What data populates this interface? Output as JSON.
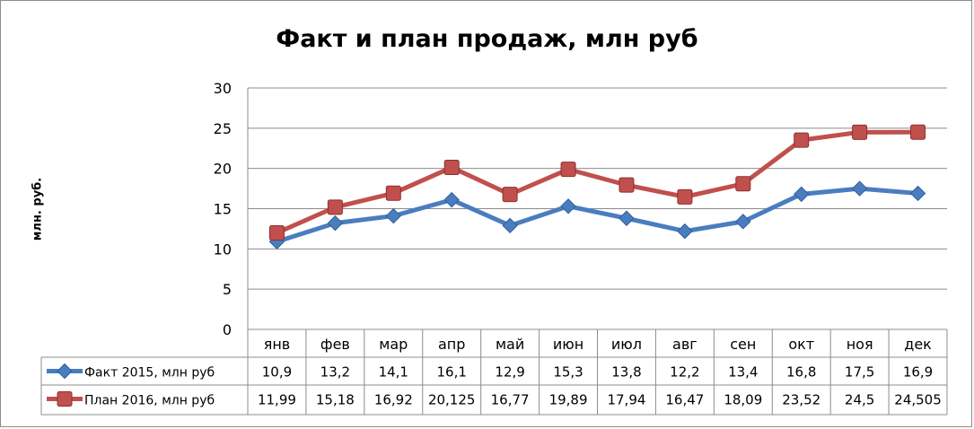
{
  "chart_data": {
    "type": "line",
    "title": "Факт и план продаж, млн руб",
    "ylabel": "млн. руб.",
    "xlabel": "",
    "ylim": [
      0,
      30
    ],
    "yticks": [
      "0",
      "5",
      "10",
      "15",
      "20",
      "25",
      "30"
    ],
    "grid": true,
    "legend": "data-table-left",
    "categories": [
      "янв",
      "фев",
      "мар",
      "апр",
      "май",
      "июн",
      "июл",
      "авг",
      "сен",
      "окт",
      "ноя",
      "дек"
    ],
    "series": [
      {
        "name": "Факт 2015, млн руб",
        "color": "#4a7dc0",
        "marker": "diamond",
        "values": [
          10.9,
          13.2,
          14.1,
          16.1,
          12.9,
          15.3,
          13.8,
          12.2,
          13.4,
          16.8,
          17.5,
          16.9
        ],
        "labels": [
          "10,9",
          "13,2",
          "14,1",
          "16,1",
          "12,9",
          "15,3",
          "13,8",
          "12,2",
          "13,4",
          "16,8",
          "17,5",
          "16,9"
        ]
      },
      {
        "name": "План 2016, млн руб",
        "color": "#c0504d",
        "marker": "square",
        "values": [
          11.99,
          15.18,
          16.92,
          20.125,
          16.77,
          19.89,
          17.94,
          16.47,
          18.09,
          23.52,
          24.5,
          24.505
        ],
        "labels": [
          "11,99",
          "15,18",
          "16,92",
          "20,125",
          "16,77",
          "19,89",
          "17,94",
          "16,47",
          "18,09",
          "23,52",
          "24,5",
          "24,505"
        ]
      }
    ]
  }
}
